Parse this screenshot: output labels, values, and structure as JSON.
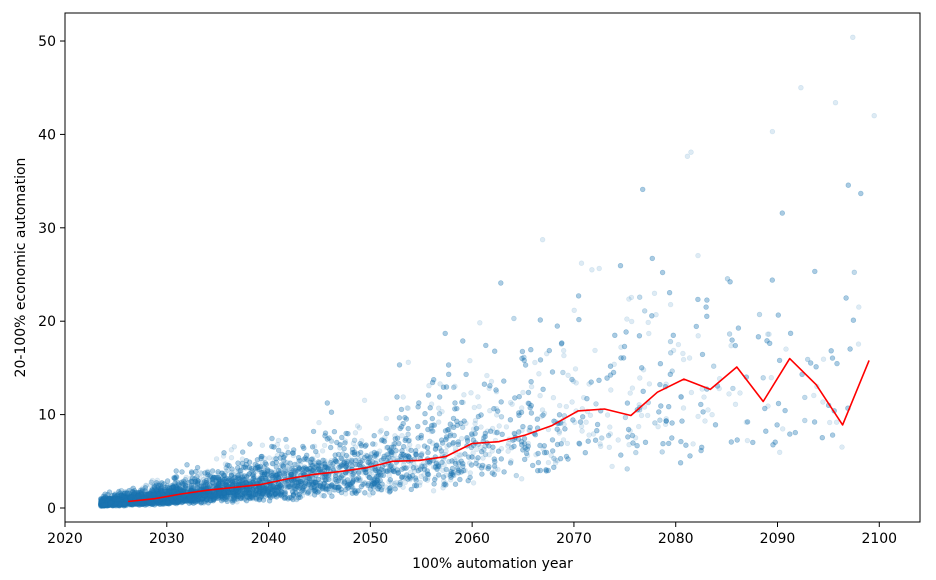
{
  "chart_data": {
    "type": "scatter",
    "xlabel": "100% automation year",
    "ylabel": "20-100% economic automation",
    "xlim": [
      2020,
      2104
    ],
    "ylim": [
      -1.5,
      53
    ],
    "x_ticks": [
      2020,
      2030,
      2040,
      2050,
      2060,
      2070,
      2080,
      2090,
      2100
    ],
    "y_ticks": [
      0,
      10,
      20,
      30,
      40,
      50
    ],
    "grid": false,
    "colors": {
      "scatter": "#1f77b4",
      "line": "#ff0000"
    },
    "scatter_series": {
      "name": "",
      "opacity": 0.15,
      "x_range": [
        2023.5,
        2100
      ],
      "approx_point_count": 9000,
      "envelope": [
        {
          "x": 2024,
          "y_min": 0.2,
          "y_median": 0.5,
          "y_max": 1.5
        },
        {
          "x": 2030,
          "y_min": 0.2,
          "y_median": 1.1,
          "y_max": 5
        },
        {
          "x": 2040,
          "y_min": 0.2,
          "y_median": 2.5,
          "y_max": 13
        },
        {
          "x": 2050,
          "y_min": 0.3,
          "y_median": 4.2,
          "y_max": 21
        },
        {
          "x": 2060,
          "y_min": 0.4,
          "y_median": 7,
          "y_max": 26
        },
        {
          "x": 2070,
          "y_min": 0.5,
          "y_median": 10.4,
          "y_max": 30
        },
        {
          "x": 2080,
          "y_min": 0.5,
          "y_median": 12.5,
          "y_max": 38
        },
        {
          "x": 2090,
          "y_min": 0.5,
          "y_median": 13,
          "y_max": 45
        },
        {
          "x": 2100,
          "y_min": 0.5,
          "y_median": 15.8,
          "y_max": 50
        }
      ],
      "notable_points": [
        {
          "x": 2097.4,
          "y": 50.4
        },
        {
          "x": 2092.3,
          "y": 45.0
        },
        {
          "x": 2095.7,
          "y": 43.4
        },
        {
          "x": 2099.5,
          "y": 42.0
        },
        {
          "x": 2089.5,
          "y": 40.3
        },
        {
          "x": 2081.5,
          "y": 38.1
        }
      ]
    },
    "series": [
      {
        "name": "",
        "type": "line",
        "x": [
          2026.2,
          2028.8,
          2031.4,
          2034.0,
          2036.6,
          2039.2,
          2041.8,
          2044.4,
          2047.0,
          2049.6,
          2052.2,
          2054.8,
          2057.4,
          2060.0,
          2062.6,
          2065.2,
          2067.8,
          2070.4,
          2073.0,
          2075.6,
          2078.2,
          2080.8,
          2083.4,
          2086.0,
          2088.6,
          2091.2,
          2093.8,
          2096.4,
          2099.0
        ],
        "y": [
          0.7,
          1.0,
          1.5,
          1.9,
          2.2,
          2.5,
          3.1,
          3.6,
          3.9,
          4.3,
          5.0,
          5.1,
          5.5,
          6.9,
          7.1,
          7.8,
          8.8,
          10.4,
          10.6,
          9.9,
          12.4,
          13.8,
          12.7,
          15.1,
          11.4,
          16.0,
          13.2,
          8.9,
          15.8
        ]
      }
    ]
  }
}
